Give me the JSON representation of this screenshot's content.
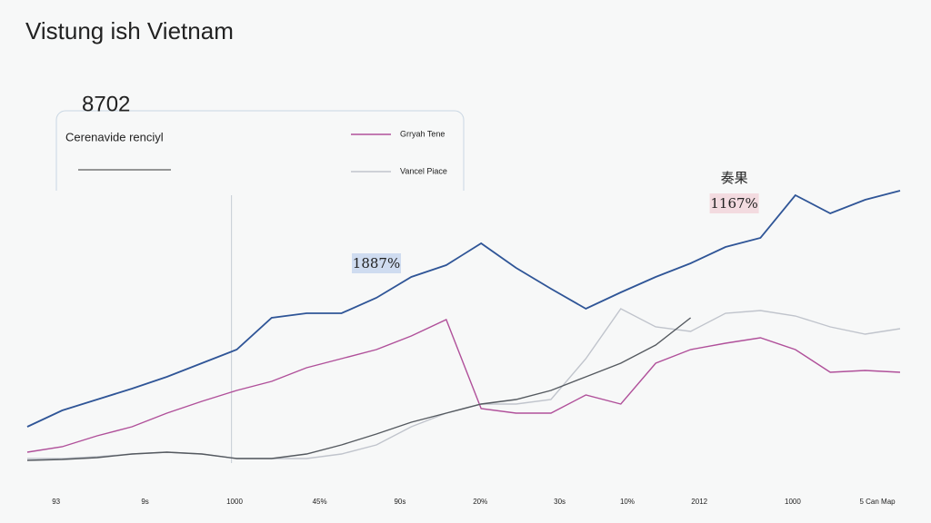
{
  "chart_data": {
    "type": "line",
    "title": "Vistung ish Vietnam",
    "headline_value": "8702",
    "subtitle": "Cerenavide renciyl",
    "annotations": [
      {
        "text": "1887%",
        "x": 40,
        "y": 60,
        "color": "#cfdcf0"
      },
      {
        "text": "奏果",
        "x": 81,
        "y": 83.5,
        "color": "#f7f8f8"
      },
      {
        "text": "1167%",
        "x": 81,
        "y": 76.5,
        "color": "#f3dbe0"
      }
    ],
    "x": [
      0,
      4,
      8,
      12,
      16,
      20,
      24,
      28,
      32,
      36,
      40,
      44,
      48,
      52,
      56,
      60,
      64,
      68,
      72,
      76,
      80,
      84,
      88,
      92,
      96,
      100
    ],
    "xlim": [
      0,
      100
    ],
    "ylim": [
      0,
      100
    ],
    "xticks": [
      {
        "value": 3.3,
        "label": "93"
      },
      {
        "value": 13.5,
        "label": "9s"
      },
      {
        "value": 23.75,
        "label": "1000"
      },
      {
        "value": 33.5,
        "label": "45%"
      },
      {
        "value": 42.7,
        "label": "90s"
      },
      {
        "value": 51.9,
        "label": "20%"
      },
      {
        "value": 61,
        "label": "30s"
      },
      {
        "value": 68.75,
        "label": "10%"
      },
      {
        "value": 77,
        "label": "2012"
      },
      {
        "value": 87.7,
        "label": "1000"
      },
      {
        "value": 97.4,
        "label": "5 Can Map"
      }
    ],
    "marker_line_x": 23.4,
    "series": [
      {
        "color": "#2f5597",
        "values": [
          15,
          19.5,
          22.5,
          25.5,
          28.75,
          32.5,
          36.25,
          45,
          46.25,
          46.25,
          50.5,
          56.25,
          59.5,
          65.5,
          58.75,
          53,
          47.5,
          52,
          56.25,
          60,
          64.5,
          67,
          78.75,
          73.75,
          77.5,
          80
        ]
      },
      {
        "name": "Grryah Tene",
        "color": "#b0509a",
        "values": [
          8,
          9.5,
          12.5,
          15,
          18.75,
          22,
          25,
          27.5,
          31.25,
          33.75,
          36.25,
          40,
          44.5,
          20,
          18.75,
          18.75,
          23.75,
          21.25,
          32.5,
          36.25,
          38,
          39.5,
          36.25,
          30,
          30.5,
          30
        ]
      },
      {
        "name": "Vancel Piace",
        "color": "#c0c4cc",
        "values": [
          6.25,
          6.25,
          6.75,
          7.5,
          8,
          7.5,
          6.25,
          6.25,
          6.25,
          7.5,
          10,
          15,
          18.75,
          21.25,
          21.25,
          22.5,
          33.75,
          47.5,
          42.5,
          41.25,
          46.25,
          47,
          45.5,
          42.5,
          40.5,
          42
        ]
      },
      {
        "color": "#555a60",
        "values": [
          5.75,
          6,
          6.5,
          7.5,
          8,
          7.5,
          6.25,
          6.25,
          7.5,
          10,
          13,
          16.25,
          18.75,
          21.25,
          22.5,
          25,
          28.75,
          32.5,
          37.5,
          45,
          null,
          null,
          null,
          null,
          null,
          null
        ]
      }
    ]
  }
}
